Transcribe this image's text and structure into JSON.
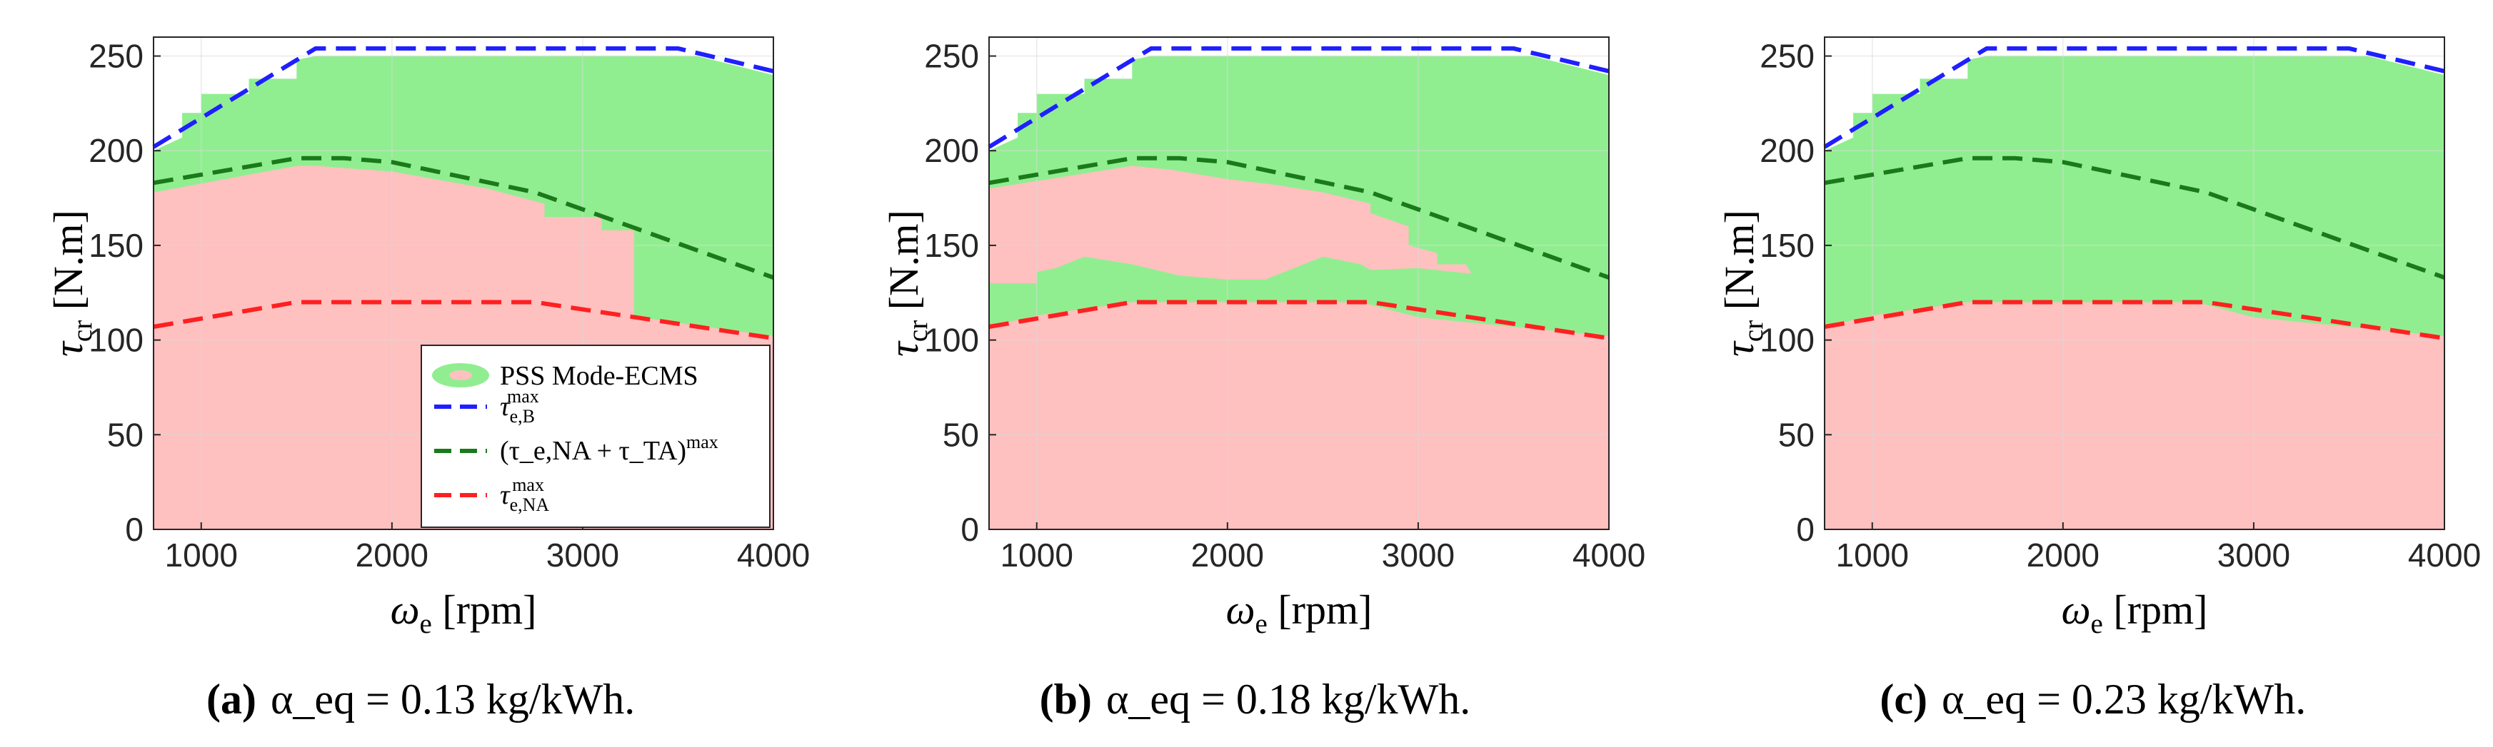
{
  "chart_data": [
    {
      "type": "area",
      "panel": "a",
      "caption": {
        "label": "(a)",
        "text": "α_eq = 0.13 kg/kWh."
      },
      "xlabel": "ω_e [rpm]",
      "ylabel": "τ_cr [N.m]",
      "xlim": [
        750,
        4000
      ],
      "ylim": [
        0,
        260
      ],
      "xticks": [
        1000,
        2000,
        3000,
        4000
      ],
      "yticks": [
        0,
        50,
        100,
        150,
        200,
        250
      ],
      "regions": [
        {
          "name": "ECMS mode (green)",
          "color": "#90ee90",
          "points": [
            [
              750,
              0
            ],
            [
              4000,
              0
            ],
            [
              4000,
              240
            ],
            [
              3600,
              250
            ],
            [
              1600,
              250
            ],
            [
              1500,
              248
            ],
            [
              1500,
              238
            ],
            [
              1250,
              238
            ],
            [
              1250,
              230
            ],
            [
              1000,
              230
            ],
            [
              1000,
              220
            ],
            [
              900,
              220
            ],
            [
              900,
              207
            ],
            [
              750,
              200
            ]
          ]
        },
        {
          "name": "PSS mode (pink)",
          "color": "#ffc0c0",
          "points": [
            [
              750,
              0
            ],
            [
              4000,
              0
            ],
            [
              4000,
              102
            ],
            [
              3300,
              112
            ],
            [
              3270,
              112
            ],
            [
              3270,
              158
            ],
            [
              3100,
              158
            ],
            [
              3100,
              165
            ],
            [
              2800,
              165
            ],
            [
              2800,
              172
            ],
            [
              2500,
              180
            ],
            [
              2000,
              189
            ],
            [
              1600,
              192
            ],
            [
              1500,
              192
            ],
            [
              750,
              178
            ]
          ]
        }
      ],
      "series": [
        {
          "name": "τ_e,B^max",
          "color": "#1f1fff",
          "x": [
            750,
            1600,
            3500,
            4000
          ],
          "y": [
            202,
            254,
            254,
            242
          ]
        },
        {
          "name": "(τ_e,NA + τ_TA)^max",
          "color": "#1a7a1a",
          "x": [
            750,
            1500,
            1750,
            2000,
            2750,
            4000
          ],
          "y": [
            183,
            196,
            196,
            194,
            178,
            133
          ]
        },
        {
          "name": "τ_e,NA^max",
          "color": "#ff2020",
          "x": [
            750,
            1500,
            2750,
            4000
          ],
          "y": [
            107,
            120,
            120,
            101
          ]
        }
      ],
      "legend": {
        "position": "bottom-right",
        "entries": [
          "PSS Mode-ECMS",
          "τ_e,B^max",
          "(τ_e,NA + τ_TA)^max",
          "τ_e,NA^max"
        ]
      }
    },
    {
      "type": "area",
      "panel": "b",
      "caption": {
        "label": "(b)",
        "text": "α_eq = 0.18 kg/kWh."
      },
      "xlabel": "ω_e [rpm]",
      "ylabel": "τ_cr [N.m]",
      "xlim": [
        750,
        4000
      ],
      "ylim": [
        0,
        260
      ],
      "xticks": [
        1000,
        2000,
        3000,
        4000
      ],
      "yticks": [
        0,
        50,
        100,
        150,
        200,
        250
      ],
      "regions": [
        {
          "name": "ECMS mode (green)",
          "color": "#90ee90",
          "points": [
            [
              750,
              0
            ],
            [
              4000,
              0
            ],
            [
              4000,
              240
            ],
            [
              3600,
              250
            ],
            [
              1600,
              250
            ],
            [
              1500,
              248
            ],
            [
              1500,
              238
            ],
            [
              1250,
              238
            ],
            [
              1250,
              230
            ],
            [
              1000,
              230
            ],
            [
              1000,
              220
            ],
            [
              900,
              220
            ],
            [
              900,
              207
            ],
            [
              750,
              200
            ]
          ]
        },
        {
          "name": "PSS mode (pink)",
          "color": "#ffc0c0",
          "points": [
            [
              750,
              0
            ],
            [
              4000,
              0
            ],
            [
              4000,
              102
            ],
            [
              3000,
              112
            ],
            [
              2700,
              120
            ],
            [
              1500,
              120
            ],
            [
              1000,
              113
            ],
            [
              750,
              107
            ]
          ]
        },
        {
          "name": "PSS mode island (pink)",
          "color": "#ffc0c0",
          "points": [
            [
              750,
              180
            ],
            [
              1500,
              192
            ],
            [
              1700,
              190
            ],
            [
              2000,
              185
            ],
            [
              2250,
              182
            ],
            [
              2500,
              178
            ],
            [
              2750,
              172
            ],
            [
              2750,
              167
            ],
            [
              2950,
              160
            ],
            [
              2950,
              150
            ],
            [
              3100,
              146
            ],
            [
              3100,
              140
            ],
            [
              3250,
              140
            ],
            [
              3280,
              135
            ],
            [
              3000,
              138
            ],
            [
              2750,
              137
            ],
            [
              2700,
              140
            ],
            [
              2500,
              144
            ],
            [
              2350,
              138
            ],
            [
              2200,
              132
            ],
            [
              2000,
              132
            ],
            [
              1750,
              134
            ],
            [
              1500,
              140
            ],
            [
              1250,
              144
            ],
            [
              1100,
              138
            ],
            [
              1000,
              136
            ],
            [
              1000,
              130
            ],
            [
              750,
              130
            ]
          ]
        }
      ],
      "series": [
        {
          "name": "τ_e,B^max",
          "color": "#1f1fff",
          "x": [
            750,
            1600,
            3500,
            4000
          ],
          "y": [
            202,
            254,
            254,
            242
          ]
        },
        {
          "name": "(τ_e,NA + τ_TA)^max",
          "color": "#1a7a1a",
          "x": [
            750,
            1500,
            1750,
            2000,
            2750,
            4000
          ],
          "y": [
            183,
            196,
            196,
            194,
            178,
            133
          ]
        },
        {
          "name": "τ_e,NA^max",
          "color": "#ff2020",
          "x": [
            750,
            1500,
            2750,
            4000
          ],
          "y": [
            107,
            120,
            120,
            101
          ]
        }
      ]
    },
    {
      "type": "area",
      "panel": "c",
      "caption": {
        "label": "(c)",
        "text": "α_eq = 0.23 kg/kWh."
      },
      "xlabel": "ω_e [rpm]",
      "ylabel": "τ_cr [N.m]",
      "xlim": [
        750,
        4000
      ],
      "ylim": [
        0,
        260
      ],
      "xticks": [
        1000,
        2000,
        3000,
        4000
      ],
      "yticks": [
        0,
        50,
        100,
        150,
        200,
        250
      ],
      "regions": [
        {
          "name": "ECMS mode (green)",
          "color": "#90ee90",
          "points": [
            [
              750,
              0
            ],
            [
              4000,
              0
            ],
            [
              4000,
              240
            ],
            [
              3600,
              250
            ],
            [
              1600,
              250
            ],
            [
              1500,
              248
            ],
            [
              1500,
              238
            ],
            [
              1250,
              238
            ],
            [
              1250,
              230
            ],
            [
              1000,
              230
            ],
            [
              1000,
              220
            ],
            [
              900,
              220
            ],
            [
              900,
              207
            ],
            [
              750,
              200
            ]
          ]
        },
        {
          "name": "PSS mode (pink)",
          "color": "#ffc0c0",
          "points": [
            [
              750,
              0
            ],
            [
              4000,
              0
            ],
            [
              4000,
              102
            ],
            [
              3000,
              112
            ],
            [
              2700,
              120
            ],
            [
              1500,
              120
            ],
            [
              1000,
              113
            ],
            [
              750,
              107
            ]
          ]
        }
      ],
      "series": [
        {
          "name": "τ_e,B^max",
          "color": "#1f1fff",
          "x": [
            750,
            1600,
            3500,
            4000
          ],
          "y": [
            202,
            254,
            254,
            242
          ]
        },
        {
          "name": "(τ_e,NA + τ_TA)^max",
          "color": "#1a7a1a",
          "x": [
            750,
            1500,
            1750,
            2000,
            2750,
            4000
          ],
          "y": [
            183,
            196,
            196,
            194,
            178,
            133
          ]
        },
        {
          "name": "τ_e,NA^max",
          "color": "#ff2020",
          "x": [
            750,
            1500,
            2750,
            4000
          ],
          "y": [
            107,
            120,
            120,
            101
          ]
        }
      ]
    }
  ]
}
